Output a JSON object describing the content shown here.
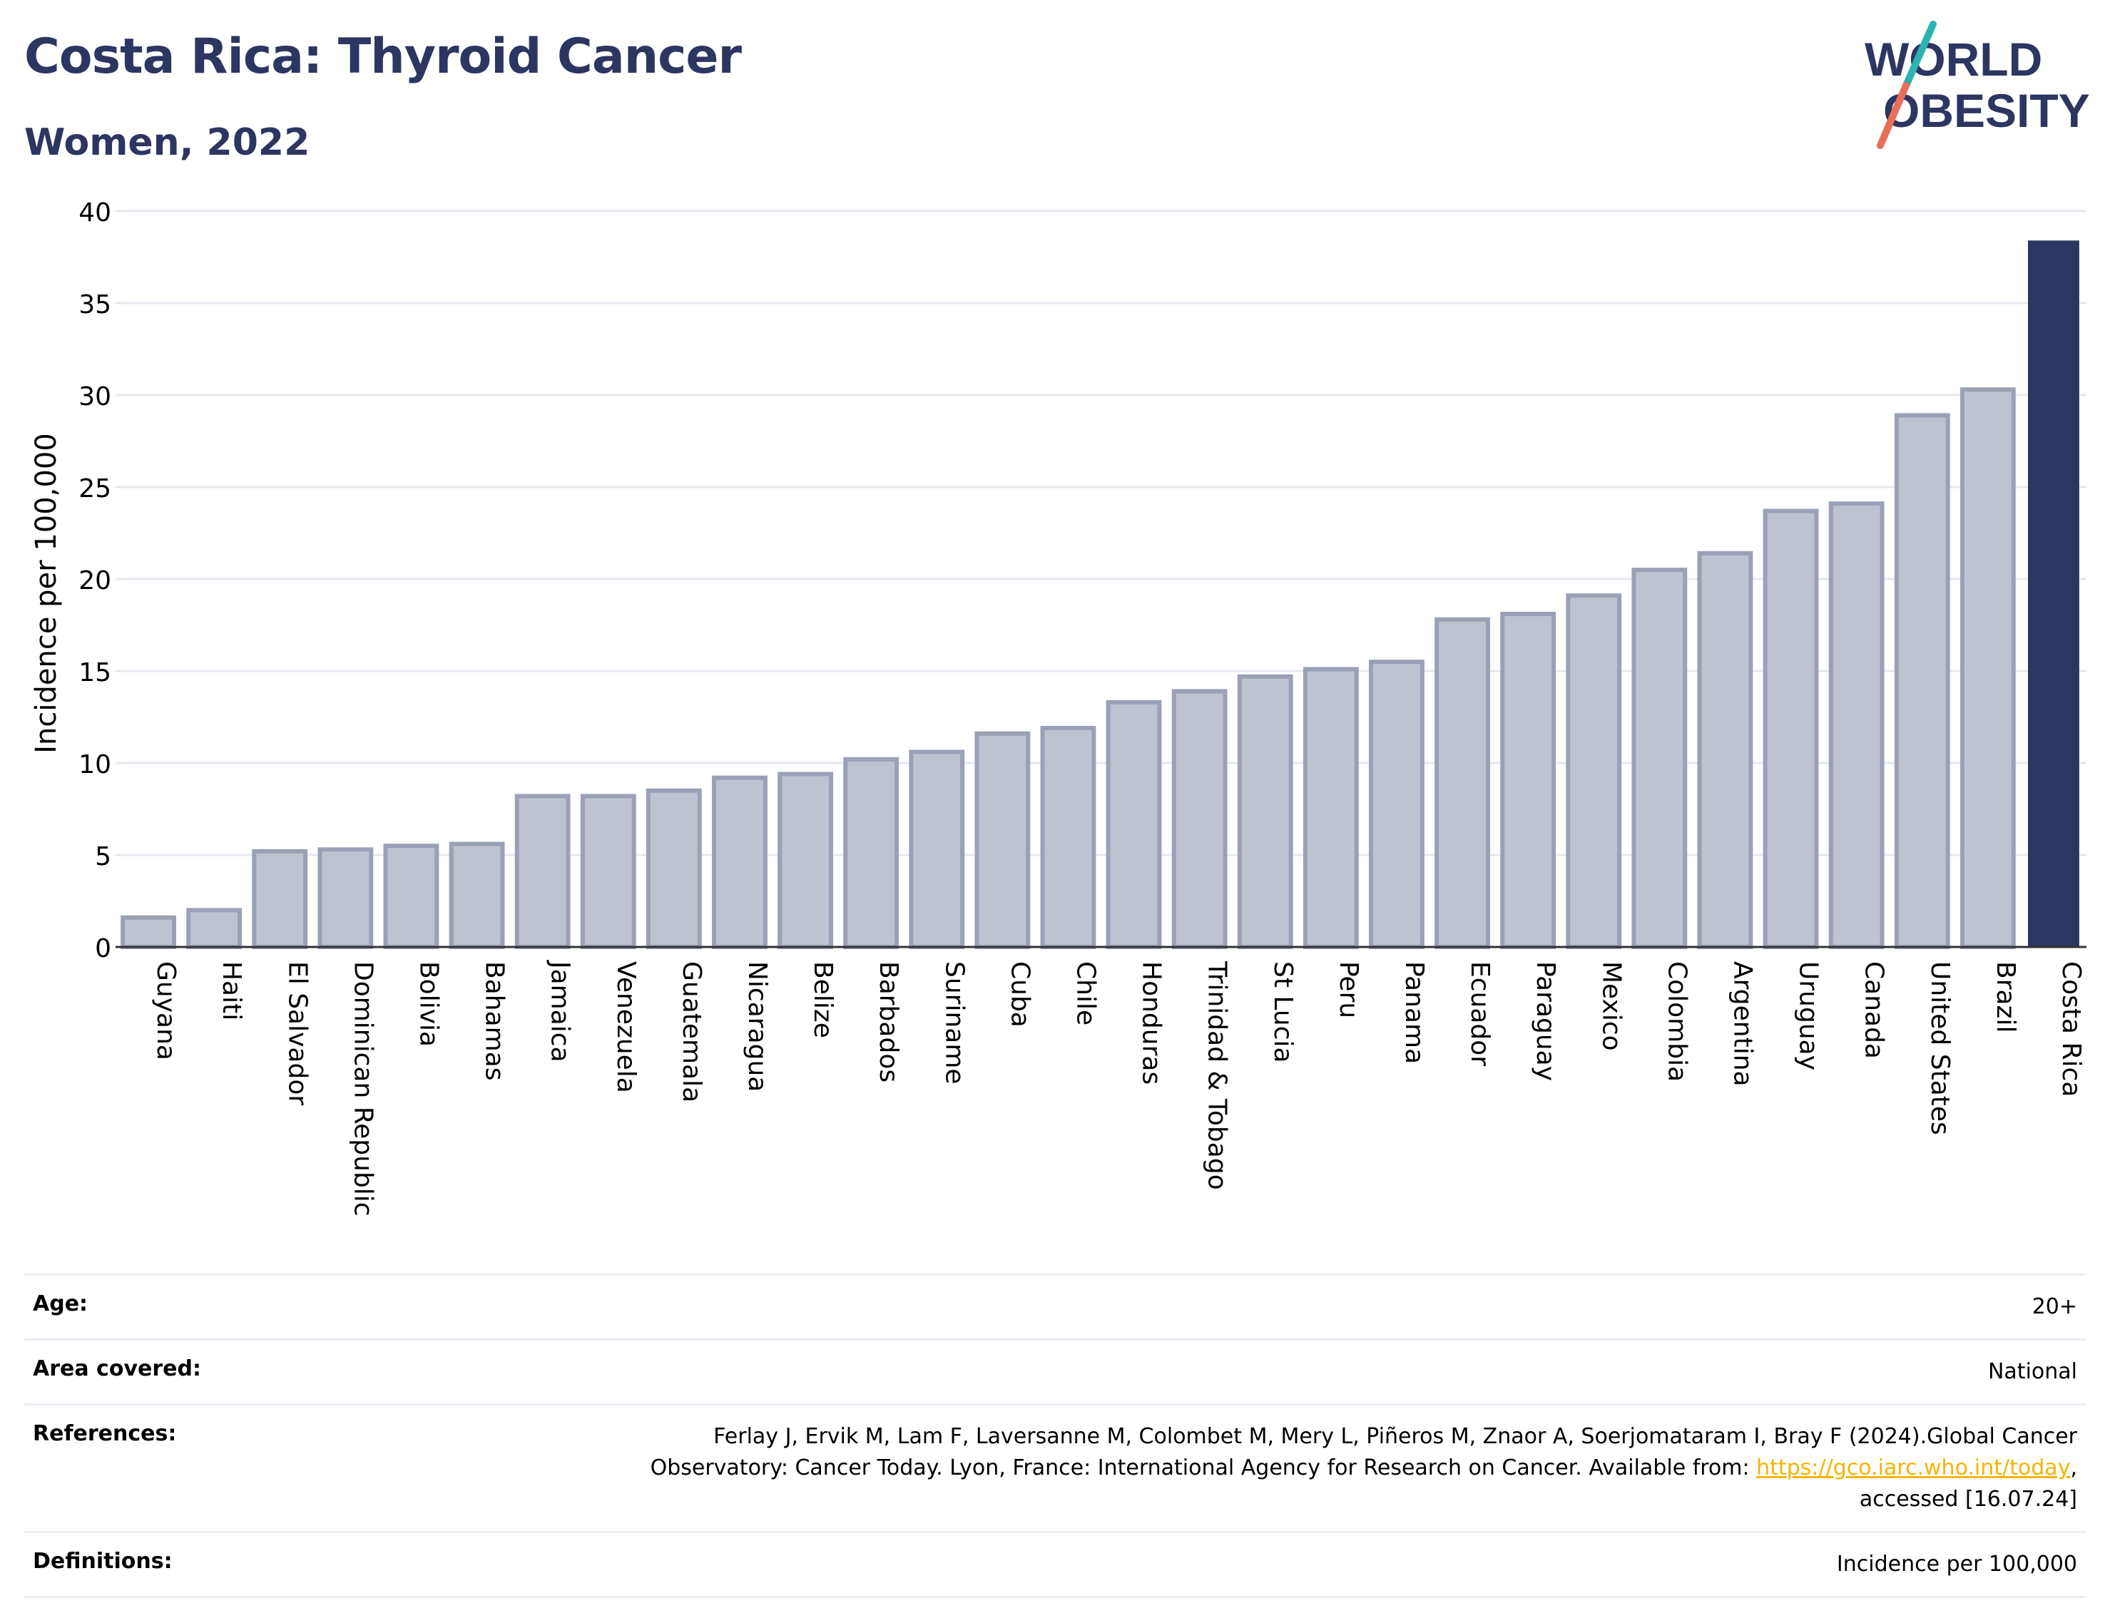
{
  "header": {
    "title": "Costa Rica: Thyroid Cancer",
    "subtitle": "Women, 2022"
  },
  "logo": {
    "line1": "WORLD",
    "line2": "OBESITY",
    "colors": {
      "text": "#2d3561",
      "slash_teal": "#2ab3b1",
      "slash_coral": "#e76f5a"
    }
  },
  "chart_data": {
    "type": "bar",
    "ylabel": "Incidence per 100,000",
    "xlabel": "",
    "ylim": [
      0,
      40
    ],
    "yticks": [
      0,
      5,
      10,
      15,
      20,
      25,
      30,
      35,
      40
    ],
    "grid": true,
    "categories": [
      "Guyana",
      "Haiti",
      "El Salvador",
      "Dominican Republic",
      "Bolivia",
      "Bahamas",
      "Jamaica",
      "Venezuela",
      "Guatemala",
      "Nicaragua",
      "Belize",
      "Barbados",
      "Suriname",
      "Cuba",
      "Chile",
      "Honduras",
      "Trinidad & Tobago",
      "St Lucia",
      "Peru",
      "Panama",
      "Ecuador",
      "Paraguay",
      "Mexico",
      "Colombia",
      "Argentina",
      "Uruguay",
      "Canada",
      "United States",
      "Brazil",
      "Costa Rica"
    ],
    "values": [
      1.6,
      2.0,
      5.2,
      5.3,
      5.5,
      5.6,
      8.2,
      8.2,
      8.5,
      9.2,
      9.4,
      10.2,
      10.6,
      11.6,
      11.9,
      13.3,
      13.9,
      14.7,
      15.1,
      15.5,
      17.8,
      18.1,
      19.1,
      20.5,
      21.4,
      23.7,
      24.1,
      28.9,
      30.3,
      38.4
    ],
    "highlight": "Costa Rica",
    "colors": {
      "bar_fill": "#bfc3d0",
      "bar_stroke": "#9aa0b6",
      "highlight": "#2d3561",
      "grid": "#e6e8ef"
    }
  },
  "info": {
    "age": {
      "label": "Age:",
      "value": "20+"
    },
    "area": {
      "label": "Area covered:",
      "value": "National"
    },
    "references": {
      "label": "References:",
      "text1": "Ferlay J, Ervik M, Lam F, Laversanne M, Colombet M, Mery L, Piñeros M, Znaor A, Soerjomataram I, Bray F (2024).Global Cancer Observatory: Cancer Today. Lyon, France: International Agency for Research on Cancer. Available from: ",
      "link": "https://gco.iarc.who.int/today",
      "text2": ", accessed [16.07.24]"
    },
    "definitions": {
      "label": "Definitions:",
      "value": "Incidence per 100,000"
    }
  }
}
